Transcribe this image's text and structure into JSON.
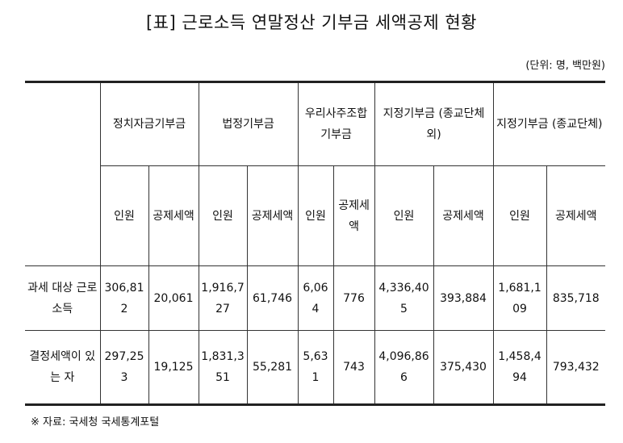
{
  "title": "[표] 근로소득 연말정산 기부금 세액공제 현황",
  "unit": "(단위: 명, 백만원)",
  "groups": [
    "정치자금기부금",
    "법정기부금",
    "우리사주조합 기부금",
    "지정기부금 (종교단체 외)",
    "지정기부금 (종교단체)"
  ],
  "sub": {
    "persons": "인원",
    "amount": "공제세액"
  },
  "rows": [
    {
      "label": "과세 대상 근로소득",
      "values": [
        "306,812",
        "20,061",
        "1,916,727",
        "61,746",
        "6,064",
        "776",
        "4,336,405",
        "393,884",
        "1,681,109",
        "835,718"
      ]
    },
    {
      "label": "결정세액이 있는 자",
      "values": [
        "297,253",
        "19,125",
        "1,831,351",
        "55,281",
        "5,631",
        "743",
        "4,096,866",
        "375,430",
        "1,458,494",
        "793,432"
      ]
    }
  ],
  "source": "※ 자료: 국세청 국세통계포털"
}
